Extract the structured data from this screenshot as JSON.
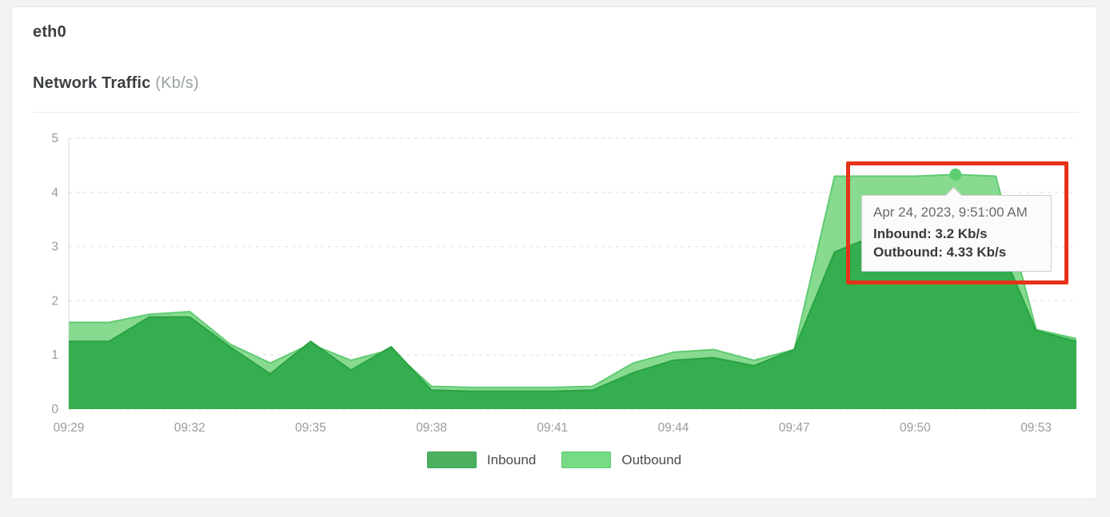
{
  "page": {
    "background_color": "#f2f3f5",
    "card_background_color": "#ffffff"
  },
  "header": {
    "interface_name": "eth0",
    "chart_title": "Network Traffic",
    "chart_units": "(Kb/s)"
  },
  "chart_data": {
    "type": "area",
    "title": "Network Traffic (Kb/s)",
    "xlabel": "",
    "ylabel": "Kb/s",
    "ylim": [
      0,
      5
    ],
    "y_ticks": [
      0,
      1,
      2,
      3,
      4,
      5
    ],
    "grid": "horizontal dashed",
    "legend_position": "bottom center",
    "x": [
      "09:29",
      "09:30",
      "09:31",
      "09:32",
      "09:33",
      "09:34",
      "09:35",
      "09:36",
      "09:37",
      "09:38",
      "09:39",
      "09:40",
      "09:41",
      "09:42",
      "09:43",
      "09:44",
      "09:45",
      "09:46",
      "09:47",
      "09:48",
      "09:49",
      "09:50",
      "09:51",
      "09:52",
      "09:53",
      "09:54"
    ],
    "x_tick_labels": [
      "09:29",
      "09:32",
      "09:35",
      "09:38",
      "09:41",
      "09:44",
      "09:47",
      "09:50",
      "09:53"
    ],
    "series": [
      {
        "name": "Inbound",
        "color": "#31ac4b",
        "line_color": "#2aa244",
        "legend_color": "#4cb05e",
        "legend_border": "#3fa352",
        "values": [
          1.25,
          1.25,
          1.7,
          1.7,
          1.15,
          0.65,
          1.25,
          0.72,
          1.15,
          0.35,
          0.33,
          0.33,
          0.33,
          0.35,
          0.67,
          0.9,
          0.95,
          0.8,
          1.1,
          2.9,
          3.2,
          3.2,
          3.2,
          3.2,
          1.45,
          1.25
        ]
      },
      {
        "name": "Outbound",
        "color": "#83d88d",
        "line_color": "#5fcb71",
        "legend_color": "#77db85",
        "legend_border": "#5dc76e",
        "values": [
          1.6,
          1.6,
          1.75,
          1.8,
          1.2,
          0.85,
          1.2,
          0.9,
          1.1,
          0.42,
          0.4,
          0.4,
          0.4,
          0.42,
          0.85,
          1.05,
          1.1,
          0.9,
          1.1,
          4.3,
          4.3,
          4.3,
          4.33,
          4.3,
          1.47,
          1.3
        ]
      }
    ],
    "highlighted_point": {
      "x": "09:51",
      "series": "Outbound",
      "value": 4.33,
      "marker_color": "#5fce72"
    }
  },
  "tooltip": {
    "timestamp": "Apr 24, 2023, 9:51:00 AM",
    "inbound_text": "Inbound: 3.2 Kb/s",
    "outbound_text": "Outbound: 4.33 Kb/s"
  },
  "annotation": {
    "type": "highlight-box",
    "color": "#e43318"
  },
  "legend": {
    "items": [
      "Inbound",
      "Outbound"
    ]
  }
}
